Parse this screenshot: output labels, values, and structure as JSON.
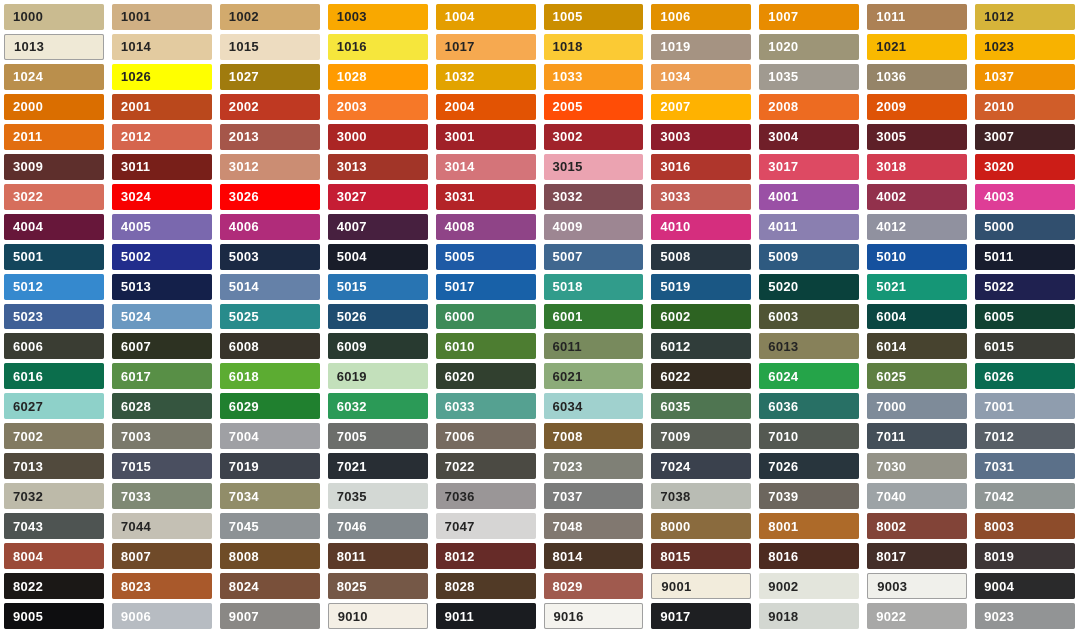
{
  "chart_data": {
    "type": "table",
    "columns": 10,
    "rows": 21,
    "page_background": "#FFFFFF",
    "label_color_dark": "#242424",
    "label_color_light": "#FFFFFF",
    "swatch_border_color": "#A0A0A0",
    "swatches": [
      {
        "code": "1000",
        "hex": "#CABB90",
        "text": "dark"
      },
      {
        "code": "1001",
        "hex": "#D0B084",
        "text": "dark"
      },
      {
        "code": "1002",
        "hex": "#D2AA6D",
        "text": "dark"
      },
      {
        "code": "1003",
        "hex": "#F9A800",
        "text": "dark"
      },
      {
        "code": "1004",
        "hex": "#E49E00",
        "text": "light"
      },
      {
        "code": "1005",
        "hex": "#CB8E00",
        "text": "light"
      },
      {
        "code": "1006",
        "hex": "#E29000",
        "text": "light"
      },
      {
        "code": "1007",
        "hex": "#E88C00",
        "text": "light"
      },
      {
        "code": "1011",
        "hex": "#AC8155",
        "text": "light"
      },
      {
        "code": "1012",
        "hex": "#D6B43A",
        "text": "dark"
      },
      {
        "code": "1013",
        "hex": "#EFE9D6",
        "text": "dark",
        "bordered": true
      },
      {
        "code": "1014",
        "hex": "#E3CBA0",
        "text": "dark"
      },
      {
        "code": "1015",
        "hex": "#EDDCC0",
        "text": "dark"
      },
      {
        "code": "1016",
        "hex": "#F6E63C",
        "text": "dark"
      },
      {
        "code": "1017",
        "hex": "#F6A950",
        "text": "dark"
      },
      {
        "code": "1018",
        "hex": "#FBCA34",
        "text": "dark"
      },
      {
        "code": "1019",
        "hex": "#A59382",
        "text": "light"
      },
      {
        "code": "1020",
        "hex": "#9D9577",
        "text": "light"
      },
      {
        "code": "1021",
        "hex": "#F9B800",
        "text": "dark"
      },
      {
        "code": "1023",
        "hex": "#F8B200",
        "text": "dark"
      },
      {
        "code": "1024",
        "hex": "#BA8F4C",
        "text": "light"
      },
      {
        "code": "1026",
        "hex": "#FFFF00",
        "text": "dark"
      },
      {
        "code": "1027",
        "hex": "#A07B0E",
        "text": "light"
      },
      {
        "code": "1028",
        "hex": "#FF9B00",
        "text": "light"
      },
      {
        "code": "1032",
        "hex": "#E2A300",
        "text": "light"
      },
      {
        "code": "1033",
        "hex": "#F99A1C",
        "text": "light"
      },
      {
        "code": "1034",
        "hex": "#EB9C52",
        "text": "light"
      },
      {
        "code": "1035",
        "hex": "#A09A90",
        "text": "light"
      },
      {
        "code": "1036",
        "hex": "#958468",
        "text": "light"
      },
      {
        "code": "1037",
        "hex": "#F09200",
        "text": "light"
      },
      {
        "code": "2000",
        "hex": "#DA6E00",
        "text": "light"
      },
      {
        "code": "2001",
        "hex": "#BA481C",
        "text": "light"
      },
      {
        "code": "2002",
        "hex": "#BF3922",
        "text": "light"
      },
      {
        "code": "2003",
        "hex": "#F67828",
        "text": "light"
      },
      {
        "code": "2004",
        "hex": "#E25303",
        "text": "light"
      },
      {
        "code": "2005",
        "hex": "#FF4D06",
        "text": "light"
      },
      {
        "code": "2007",
        "hex": "#FFB200",
        "text": "light"
      },
      {
        "code": "2008",
        "hex": "#ED6B21",
        "text": "light"
      },
      {
        "code": "2009",
        "hex": "#DE5307",
        "text": "light"
      },
      {
        "code": "2010",
        "hex": "#D05D29",
        "text": "light"
      },
      {
        "code": "2011",
        "hex": "#E26E0F",
        "text": "light"
      },
      {
        "code": "2012",
        "hex": "#D5654D",
        "text": "light"
      },
      {
        "code": "2013",
        "hex": "#A5564A",
        "text": "light"
      },
      {
        "code": "3000",
        "hex": "#AB2524",
        "text": "light"
      },
      {
        "code": "3001",
        "hex": "#A02128",
        "text": "light"
      },
      {
        "code": "3002",
        "hex": "#A1232B",
        "text": "light"
      },
      {
        "code": "3003",
        "hex": "#8D1D2C",
        "text": "light"
      },
      {
        "code": "3004",
        "hex": "#701F29",
        "text": "light"
      },
      {
        "code": "3005",
        "hex": "#5E2028",
        "text": "light"
      },
      {
        "code": "3007",
        "hex": "#402225",
        "text": "light"
      },
      {
        "code": "3009",
        "hex": "#5E2F2C",
        "text": "light"
      },
      {
        "code": "3011",
        "hex": "#781F19",
        "text": "light"
      },
      {
        "code": "3012",
        "hex": "#CB8D73",
        "text": "light"
      },
      {
        "code": "3013",
        "hex": "#A23528",
        "text": "light"
      },
      {
        "code": "3014",
        "hex": "#D47479",
        "text": "light"
      },
      {
        "code": "3015",
        "hex": "#EBA3B1",
        "text": "dark"
      },
      {
        "code": "3016",
        "hex": "#AF362C",
        "text": "light"
      },
      {
        "code": "3017",
        "hex": "#DD4A63",
        "text": "light"
      },
      {
        "code": "3018",
        "hex": "#D23C50",
        "text": "light"
      },
      {
        "code": "3020",
        "hex": "#CC1D17",
        "text": "light"
      },
      {
        "code": "3022",
        "hex": "#D66E5C",
        "text": "light"
      },
      {
        "code": "3024",
        "hex": "#F80000",
        "text": "light"
      },
      {
        "code": "3026",
        "hex": "#FE0000",
        "text": "light"
      },
      {
        "code": "3027",
        "hex": "#C51D34",
        "text": "light"
      },
      {
        "code": "3031",
        "hex": "#B32428",
        "text": "light"
      },
      {
        "code": "3032",
        "hex": "#7E4B53",
        "text": "light"
      },
      {
        "code": "3033",
        "hex": "#C05D54",
        "text": "light"
      },
      {
        "code": "4001",
        "hex": "#9A50A5",
        "text": "light"
      },
      {
        "code": "4002",
        "hex": "#92314C",
        "text": "light"
      },
      {
        "code": "4003",
        "hex": "#DE3D96",
        "text": "light"
      },
      {
        "code": "4004",
        "hex": "#67173A",
        "text": "light"
      },
      {
        "code": "4005",
        "hex": "#7A68AE",
        "text": "light"
      },
      {
        "code": "4006",
        "hex": "#B02C7A",
        "text": "light"
      },
      {
        "code": "4007",
        "hex": "#47203F",
        "text": "light"
      },
      {
        "code": "4008",
        "hex": "#8F4487",
        "text": "light"
      },
      {
        "code": "4009",
        "hex": "#9D8692",
        "text": "light"
      },
      {
        "code": "4010",
        "hex": "#D52E7E",
        "text": "light"
      },
      {
        "code": "4011",
        "hex": "#8A7FB0",
        "text": "light"
      },
      {
        "code": "4012",
        "hex": "#90919F",
        "text": "light"
      },
      {
        "code": "5000",
        "hex": "#314F6E",
        "text": "light"
      },
      {
        "code": "5001",
        "hex": "#14465C",
        "text": "light"
      },
      {
        "code": "5002",
        "hex": "#222D8C",
        "text": "light"
      },
      {
        "code": "5003",
        "hex": "#1B2A44",
        "text": "light"
      },
      {
        "code": "5004",
        "hex": "#191D29",
        "text": "light"
      },
      {
        "code": "5005",
        "hex": "#1E5AA5",
        "text": "light"
      },
      {
        "code": "5007",
        "hex": "#40678F",
        "text": "light"
      },
      {
        "code": "5008",
        "hex": "#283540",
        "text": "light"
      },
      {
        "code": "5009",
        "hex": "#2E5A80",
        "text": "light"
      },
      {
        "code": "5010",
        "hex": "#15519E",
        "text": "light"
      },
      {
        "code": "5011",
        "hex": "#181D2E",
        "text": "light"
      },
      {
        "code": "5012",
        "hex": "#3589CE",
        "text": "light"
      },
      {
        "code": "5013",
        "hex": "#14204A",
        "text": "light"
      },
      {
        "code": "5014",
        "hex": "#6581A8",
        "text": "light"
      },
      {
        "code": "5015",
        "hex": "#2874B2",
        "text": "light"
      },
      {
        "code": "5017",
        "hex": "#1861A8",
        "text": "light"
      },
      {
        "code": "5018",
        "hex": "#319C8B",
        "text": "light"
      },
      {
        "code": "5019",
        "hex": "#1A5784",
        "text": "light"
      },
      {
        "code": "5020",
        "hex": "#0A413C",
        "text": "light"
      },
      {
        "code": "5021",
        "hex": "#159676",
        "text": "light"
      },
      {
        "code": "5022",
        "hex": "#1F2150",
        "text": "light"
      },
      {
        "code": "5023",
        "hex": "#3F6096",
        "text": "light"
      },
      {
        "code": "5024",
        "hex": "#6A98C0",
        "text": "light"
      },
      {
        "code": "5025",
        "hex": "#288B8B",
        "text": "light"
      },
      {
        "code": "5026",
        "hex": "#1F4C70",
        "text": "light"
      },
      {
        "code": "6000",
        "hex": "#3D8B58",
        "text": "light"
      },
      {
        "code": "6001",
        "hex": "#32792F",
        "text": "light"
      },
      {
        "code": "6002",
        "hex": "#2D6322",
        "text": "light"
      },
      {
        "code": "6003",
        "hex": "#4F5435",
        "text": "light"
      },
      {
        "code": "6004",
        "hex": "#0B4742",
        "text": "light"
      },
      {
        "code": "6005",
        "hex": "#114232",
        "text": "light"
      },
      {
        "code": "6006",
        "hex": "#3A3D33",
        "text": "light"
      },
      {
        "code": "6007",
        "hex": "#2D3222",
        "text": "light"
      },
      {
        "code": "6008",
        "hex": "#38342B",
        "text": "light"
      },
      {
        "code": "6009",
        "hex": "#283A30",
        "text": "light"
      },
      {
        "code": "6010",
        "hex": "#4D7D31",
        "text": "light"
      },
      {
        "code": "6011",
        "hex": "#788A5D",
        "text": "dark"
      },
      {
        "code": "6012",
        "hex": "#303D3A",
        "text": "light"
      },
      {
        "code": "6013",
        "hex": "#87815A",
        "text": "dark"
      },
      {
        "code": "6014",
        "hex": "#47432F",
        "text": "light"
      },
      {
        "code": "6015",
        "hex": "#3B3C36",
        "text": "light"
      },
      {
        "code": "6016",
        "hex": "#0B6E4C",
        "text": "light"
      },
      {
        "code": "6017",
        "hex": "#588F46",
        "text": "light"
      },
      {
        "code": "6018",
        "hex": "#5CAC32",
        "text": "light"
      },
      {
        "code": "6019",
        "hex": "#C3E0BB",
        "text": "dark"
      },
      {
        "code": "6020",
        "hex": "#31402F",
        "text": "light"
      },
      {
        "code": "6021",
        "hex": "#8CAB79",
        "text": "dark"
      },
      {
        "code": "6022",
        "hex": "#342C21",
        "text": "light"
      },
      {
        "code": "6024",
        "hex": "#25A449",
        "text": "light"
      },
      {
        "code": "6025",
        "hex": "#5E7F42",
        "text": "light"
      },
      {
        "code": "6026",
        "hex": "#0A6B51",
        "text": "light"
      },
      {
        "code": "6027",
        "hex": "#8ED1C9",
        "text": "dark"
      },
      {
        "code": "6028",
        "hex": "#35553F",
        "text": "light"
      },
      {
        "code": "6029",
        "hex": "#20802F",
        "text": "light"
      },
      {
        "code": "6032",
        "hex": "#2B9A57",
        "text": "light"
      },
      {
        "code": "6033",
        "hex": "#55A191",
        "text": "light"
      },
      {
        "code": "6034",
        "hex": "#A0D1CE",
        "text": "dark"
      },
      {
        "code": "6035",
        "hex": "#4F7551",
        "text": "light"
      },
      {
        "code": "6036",
        "hex": "#287065",
        "text": "light"
      },
      {
        "code": "7000",
        "hex": "#7E8B99",
        "text": "light"
      },
      {
        "code": "7001",
        "hex": "#8F9DAE",
        "text": "light"
      },
      {
        "code": "7002",
        "hex": "#827A61",
        "text": "light"
      },
      {
        "code": "7003",
        "hex": "#7A796B",
        "text": "light"
      },
      {
        "code": "7004",
        "hex": "#9FA0A4",
        "text": "light"
      },
      {
        "code": "7005",
        "hex": "#6C6E6B",
        "text": "light"
      },
      {
        "code": "7006",
        "hex": "#766A5F",
        "text": "light"
      },
      {
        "code": "7008",
        "hex": "#7A5C30",
        "text": "light"
      },
      {
        "code": "7009",
        "hex": "#595E55",
        "text": "light"
      },
      {
        "code": "7010",
        "hex": "#545952",
        "text": "light"
      },
      {
        "code": "7011",
        "hex": "#444F59",
        "text": "light"
      },
      {
        "code": "7012",
        "hex": "#585F67",
        "text": "light"
      },
      {
        "code": "7013",
        "hex": "#514A3D",
        "text": "light"
      },
      {
        "code": "7015",
        "hex": "#4A4F60",
        "text": "light"
      },
      {
        "code": "7019",
        "hex": "#3D424B",
        "text": "light"
      },
      {
        "code": "7021",
        "hex": "#282E34",
        "text": "light"
      },
      {
        "code": "7022",
        "hex": "#4B4A43",
        "text": "light"
      },
      {
        "code": "7023",
        "hex": "#7F8076",
        "text": "light"
      },
      {
        "code": "7024",
        "hex": "#3A414D",
        "text": "light"
      },
      {
        "code": "7026",
        "hex": "#28353D",
        "text": "light"
      },
      {
        "code": "7030",
        "hex": "#939287",
        "text": "light"
      },
      {
        "code": "7031",
        "hex": "#5B7089",
        "text": "light"
      },
      {
        "code": "7032",
        "hex": "#BDBAA9",
        "text": "dark"
      },
      {
        "code": "7033",
        "hex": "#7F8974",
        "text": "light"
      },
      {
        "code": "7034",
        "hex": "#918D69",
        "text": "light"
      },
      {
        "code": "7035",
        "hex": "#D3D8D4",
        "text": "dark"
      },
      {
        "code": "7036",
        "hex": "#9A9697",
        "text": "dark"
      },
      {
        "code": "7037",
        "hex": "#7B7C7B",
        "text": "light"
      },
      {
        "code": "7038",
        "hex": "#B9BCB4",
        "text": "dark"
      },
      {
        "code": "7039",
        "hex": "#6C665E",
        "text": "light"
      },
      {
        "code": "7040",
        "hex": "#9DA3A6",
        "text": "light"
      },
      {
        "code": "7042",
        "hex": "#8F9695",
        "text": "light"
      },
      {
        "code": "7043",
        "hex": "#4E5452",
        "text": "light"
      },
      {
        "code": "7044",
        "hex": "#C4C0B4",
        "text": "dark"
      },
      {
        "code": "7045",
        "hex": "#8D9295",
        "text": "light"
      },
      {
        "code": "7046",
        "hex": "#7F868A",
        "text": "light"
      },
      {
        "code": "7047",
        "hex": "#D6D5D4",
        "text": "dark"
      },
      {
        "code": "7048",
        "hex": "#817870",
        "text": "light"
      },
      {
        "code": "8000",
        "hex": "#8A6B3E",
        "text": "light"
      },
      {
        "code": "8001",
        "hex": "#AD6A29",
        "text": "light"
      },
      {
        "code": "8002",
        "hex": "#824438",
        "text": "light"
      },
      {
        "code": "8003",
        "hex": "#8D4C2B",
        "text": "light"
      },
      {
        "code": "8004",
        "hex": "#9B4A38",
        "text": "light"
      },
      {
        "code": "8007",
        "hex": "#6F4A29",
        "text": "light"
      },
      {
        "code": "8008",
        "hex": "#6F4C27",
        "text": "light"
      },
      {
        "code": "8011",
        "hex": "#5B3A29",
        "text": "light"
      },
      {
        "code": "8012",
        "hex": "#662B28",
        "text": "light"
      },
      {
        "code": "8014",
        "hex": "#4A3526",
        "text": "light"
      },
      {
        "code": "8015",
        "hex": "#633028",
        "text": "light"
      },
      {
        "code": "8016",
        "hex": "#4C2B20",
        "text": "light"
      },
      {
        "code": "8017",
        "hex": "#442F29",
        "text": "light"
      },
      {
        "code": "8019",
        "hex": "#3D3637",
        "text": "light"
      },
      {
        "code": "8022",
        "hex": "#1B1816",
        "text": "light"
      },
      {
        "code": "8023",
        "hex": "#A9592B",
        "text": "light"
      },
      {
        "code": "8024",
        "hex": "#79503A",
        "text": "light"
      },
      {
        "code": "8025",
        "hex": "#755847",
        "text": "light"
      },
      {
        "code": "8028",
        "hex": "#513A26",
        "text": "light"
      },
      {
        "code": "8029",
        "hex": "#A05A4E",
        "text": "light"
      },
      {
        "code": "9001",
        "hex": "#F2ECDC",
        "text": "dark",
        "bordered": true
      },
      {
        "code": "9002",
        "hex": "#E3E5DC",
        "text": "dark"
      },
      {
        "code": "9003",
        "hex": "#F0F0EB",
        "text": "dark",
        "bordered": true
      },
      {
        "code": "9004",
        "hex": "#2A2A2B",
        "text": "light"
      },
      {
        "code": "9005",
        "hex": "#0E0E10",
        "text": "light"
      },
      {
        "code": "9006",
        "hex": "#B7BCC2",
        "text": "light"
      },
      {
        "code": "9007",
        "hex": "#8A8885",
        "text": "light"
      },
      {
        "code": "9010",
        "hex": "#F4EFE5",
        "text": "dark",
        "bordered": true
      },
      {
        "code": "9011",
        "hex": "#1A1C20",
        "text": "light"
      },
      {
        "code": "9016",
        "hex": "#F4F3EE",
        "text": "dark",
        "bordered": true
      },
      {
        "code": "9017",
        "hex": "#1E1F22",
        "text": "light"
      },
      {
        "code": "9018",
        "hex": "#D3D7D1",
        "text": "dark"
      },
      {
        "code": "9022",
        "hex": "#A8A8A7",
        "text": "light"
      },
      {
        "code": "9023",
        "hex": "#929495",
        "text": "light"
      }
    ]
  }
}
